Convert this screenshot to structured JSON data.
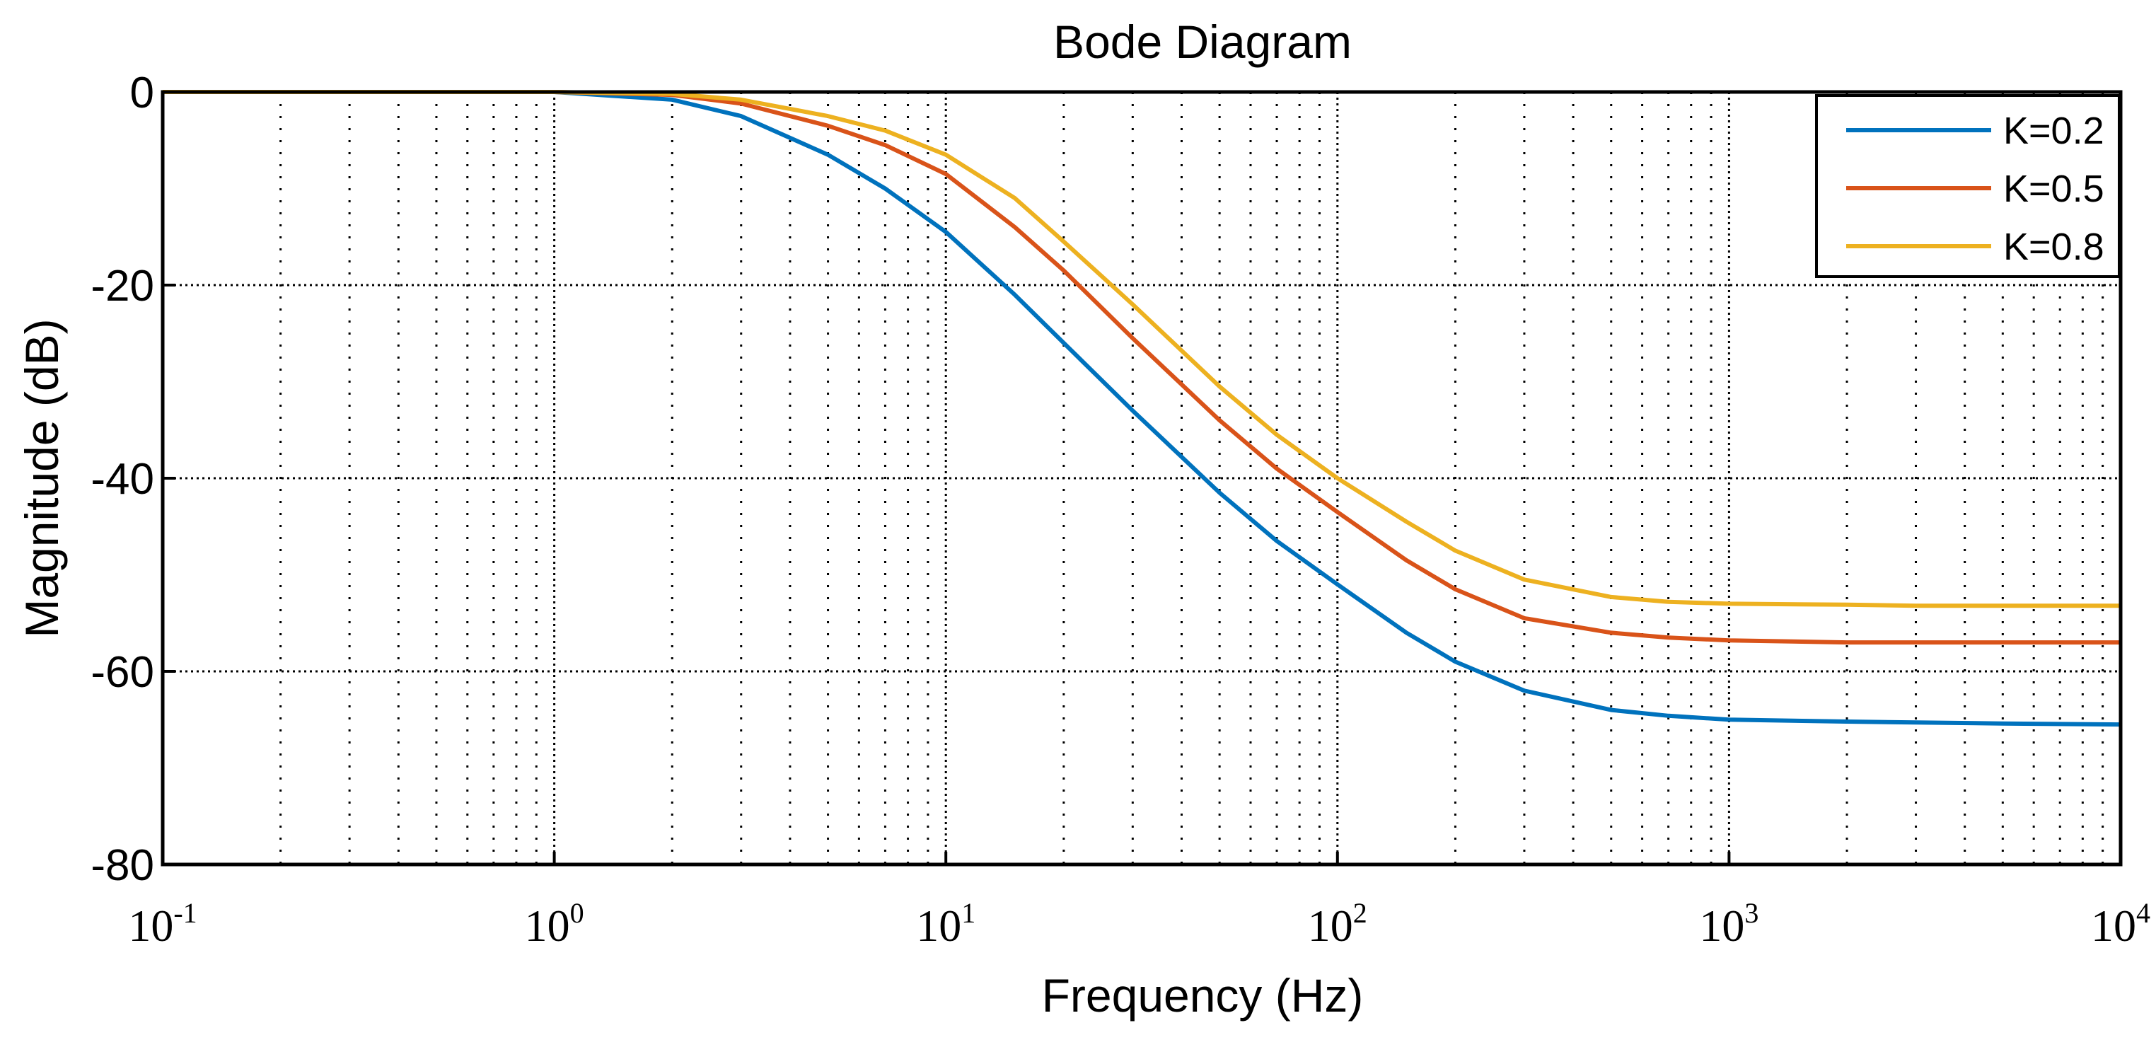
{
  "chart_data": {
    "type": "line",
    "title": "Bode Diagram",
    "xlabel": "Frequency  (Hz)",
    "ylabel": "Magnitude (dB)",
    "xscale": "log",
    "xlim": [
      0.1,
      10000
    ],
    "ylim": [
      -80,
      0
    ],
    "grid": true,
    "legend_position": "top-right",
    "x_ticks": [
      {
        "base": "10",
        "exp": "-1"
      },
      {
        "base": "10",
        "exp": "0"
      },
      {
        "base": "10",
        "exp": "1"
      },
      {
        "base": "10",
        "exp": "2"
      },
      {
        "base": "10",
        "exp": "3"
      },
      {
        "base": "10",
        "exp": "4"
      }
    ],
    "y_ticks": [
      "0",
      "-20",
      "-40",
      "-60",
      "-80"
    ],
    "x": [
      0.1,
      1,
      2,
      3,
      5,
      7,
      10,
      15,
      20,
      30,
      50,
      70,
      100,
      150,
      200,
      300,
      500,
      700,
      1000,
      2000,
      3000,
      5000,
      10000
    ],
    "series": [
      {
        "name": "K=0.2",
        "color": "#0072BD",
        "values": [
          0,
          0,
          -0.8,
          -2.5,
          -6.5,
          -10,
          -14.5,
          -21,
          -26,
          -33,
          -41.5,
          -46.5,
          -51,
          -56,
          -59,
          -62,
          -64,
          -64.6,
          -65,
          -65.2,
          -65.3,
          -65.4,
          -65.5
        ]
      },
      {
        "name": "K=0.5",
        "color": "#D95319",
        "values": [
          0,
          0,
          -0.3,
          -1.2,
          -3.5,
          -5.5,
          -8.5,
          -14,
          -18.5,
          -25.5,
          -34,
          -39,
          -43.5,
          -48.5,
          -51.5,
          -54.5,
          -56,
          -56.5,
          -56.8,
          -57,
          -57,
          -57,
          -57
        ]
      },
      {
        "name": "K=0.8",
        "color": "#EDB120",
        "values": [
          0,
          0,
          -0.2,
          -0.8,
          -2.5,
          -4,
          -6.5,
          -11,
          -15.5,
          -22,
          -30.5,
          -35.5,
          -40,
          -44.5,
          -47.5,
          -50.5,
          -52.3,
          -52.8,
          -53,
          -53.1,
          -53.2,
          -53.2,
          -53.2
        ]
      }
    ]
  }
}
